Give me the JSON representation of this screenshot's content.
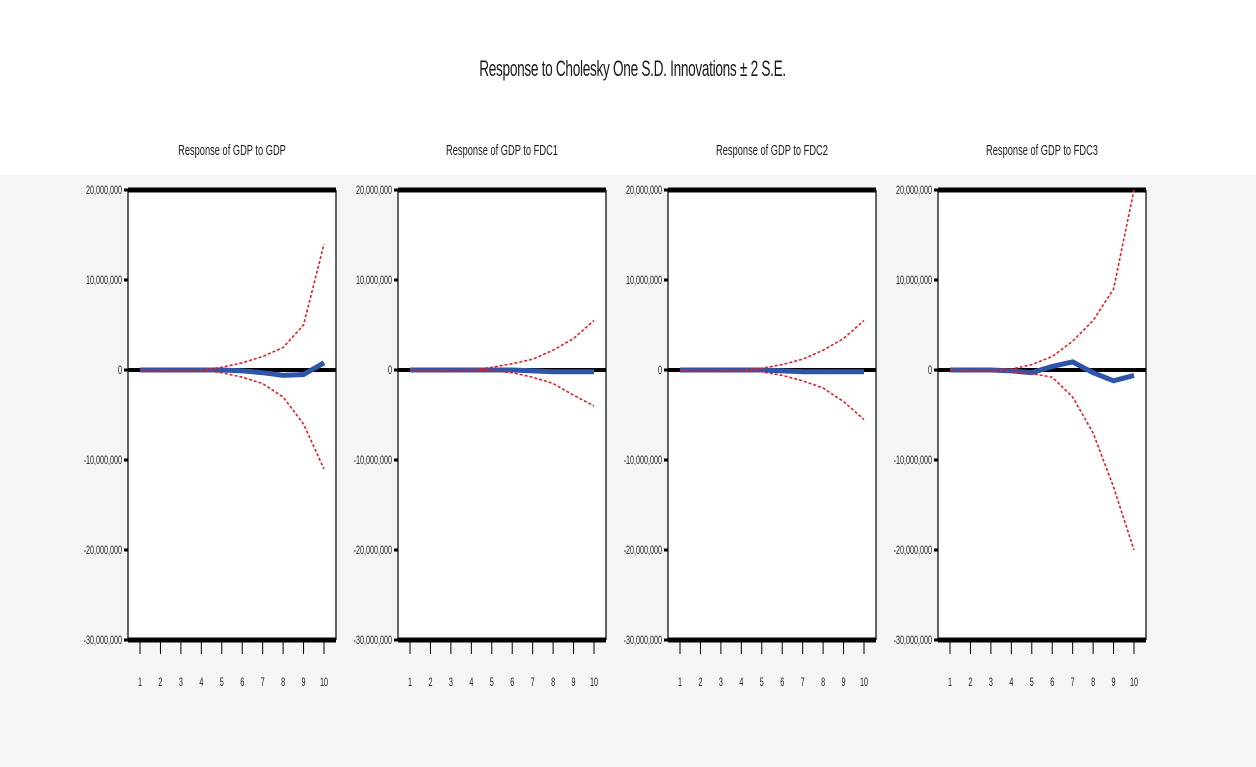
{
  "figure": {
    "title": "Response to Cholesky One S.D. Innovations ± 2 S.E.",
    "colors": {
      "response": "#2f55a8",
      "bands": "#e0202a",
      "axis": "#000000",
      "plot_bg": "#ffffff"
    }
  },
  "chart_data": [
    {
      "type": "line",
      "title": "Response of GDP to GDP",
      "x": [
        1,
        2,
        3,
        4,
        5,
        6,
        7,
        8,
        9,
        10
      ],
      "xtick_labels": [
        "1",
        "2",
        "3",
        "4",
        "5",
        "6",
        "7",
        "8",
        "9",
        "10"
      ],
      "ylim": [
        -30000000,
        20000000
      ],
      "ytick_values": [
        20000000,
        10000000,
        0,
        -10000000,
        -20000000,
        -30000000
      ],
      "ytick_labels": [
        "20,000,000",
        "10,000,000",
        "0",
        "-10,000,000",
        "-20,000,000",
        "-30,000,000"
      ],
      "grid": false,
      "series": [
        {
          "role": "response",
          "values": [
            0,
            0,
            0,
            0,
            0,
            -100000,
            -300000,
            -600000,
            -500000,
            800000
          ]
        },
        {
          "role": "upper",
          "values": [
            0,
            0,
            0,
            0,
            300000,
            800000,
            1500000,
            2500000,
            5000000,
            14000000
          ]
        },
        {
          "role": "lower",
          "values": [
            0,
            0,
            0,
            0,
            -300000,
            -800000,
            -1500000,
            -3000000,
            -6000000,
            -11000000
          ]
        }
      ]
    },
    {
      "type": "line",
      "title": "Response of GDP to FDC1",
      "x": [
        1,
        2,
        3,
        4,
        5,
        6,
        7,
        8,
        9,
        10
      ],
      "xtick_labels": [
        "1",
        "2",
        "3",
        "4",
        "5",
        "6",
        "7",
        "8",
        "9",
        "10"
      ],
      "ylim": [
        -30000000,
        20000000
      ],
      "ytick_values": [
        20000000,
        10000000,
        0,
        -10000000,
        -20000000,
        -30000000
      ],
      "ytick_labels": [
        "20,000,000",
        "10,000,000",
        "0",
        "-10,000,000",
        "-20,000,000",
        "-30,000,000"
      ],
      "grid": false,
      "series": [
        {
          "role": "response",
          "values": [
            0,
            0,
            0,
            0,
            0,
            0,
            -100000,
            -200000,
            -200000,
            -200000
          ]
        },
        {
          "role": "upper",
          "values": [
            0,
            0,
            0,
            0,
            300000,
            700000,
            1200000,
            2200000,
            3500000,
            5500000
          ]
        },
        {
          "role": "lower",
          "values": [
            0,
            0,
            0,
            0,
            -100000,
            -300000,
            -800000,
            -1500000,
            -2800000,
            -4000000
          ]
        }
      ]
    },
    {
      "type": "line",
      "title": "Response of GDP to FDC2",
      "x": [
        1,
        2,
        3,
        4,
        5,
        6,
        7,
        8,
        9,
        10
      ],
      "xtick_labels": [
        "1",
        "2",
        "3",
        "4",
        "5",
        "6",
        "7",
        "8",
        "9",
        "10"
      ],
      "ylim": [
        -30000000,
        20000000
      ],
      "ytick_values": [
        20000000,
        10000000,
        0,
        -10000000,
        -20000000,
        -30000000
      ],
      "ytick_labels": [
        "20,000,000",
        "10,000,000",
        "0",
        "-10,000,000",
        "-20,000,000",
        "-30,000,000"
      ],
      "grid": false,
      "series": [
        {
          "role": "response",
          "values": [
            0,
            0,
            0,
            0,
            0,
            -100000,
            -200000,
            -200000,
            -200000,
            -200000
          ]
        },
        {
          "role": "upper",
          "values": [
            0,
            0,
            0,
            0,
            200000,
            600000,
            1200000,
            2200000,
            3500000,
            5500000
          ]
        },
        {
          "role": "lower",
          "values": [
            0,
            0,
            0,
            0,
            -200000,
            -600000,
            -1200000,
            -2000000,
            -3500000,
            -5500000
          ]
        }
      ]
    },
    {
      "type": "line",
      "title": "Response of GDP to FDC3",
      "x": [
        1,
        2,
        3,
        4,
        5,
        6,
        7,
        8,
        9,
        10
      ],
      "xtick_labels": [
        "1",
        "2",
        "3",
        "4",
        "5",
        "6",
        "7",
        "8",
        "9",
        "10"
      ],
      "ylim": [
        -30000000,
        20000000
      ],
      "ytick_values": [
        20000000,
        10000000,
        0,
        -10000000,
        -20000000,
        -30000000
      ],
      "ytick_labels": [
        "20,000,000",
        "10,000,000",
        "0",
        "-10,000,000",
        "-20,000,000",
        "-30,000,000"
      ],
      "grid": false,
      "series": [
        {
          "role": "response",
          "values": [
            0,
            0,
            0,
            -100000,
            -300000,
            400000,
            900000,
            -300000,
            -1200000,
            -600000
          ]
        },
        {
          "role": "upper",
          "values": [
            0,
            0,
            0,
            100000,
            600000,
            1500000,
            3200000,
            5500000,
            9000000,
            20000000
          ]
        },
        {
          "role": "lower",
          "values": [
            0,
            0,
            0,
            -200000,
            -400000,
            -800000,
            -3000000,
            -7000000,
            -13000000,
            -20000000
          ]
        }
      ]
    }
  ]
}
